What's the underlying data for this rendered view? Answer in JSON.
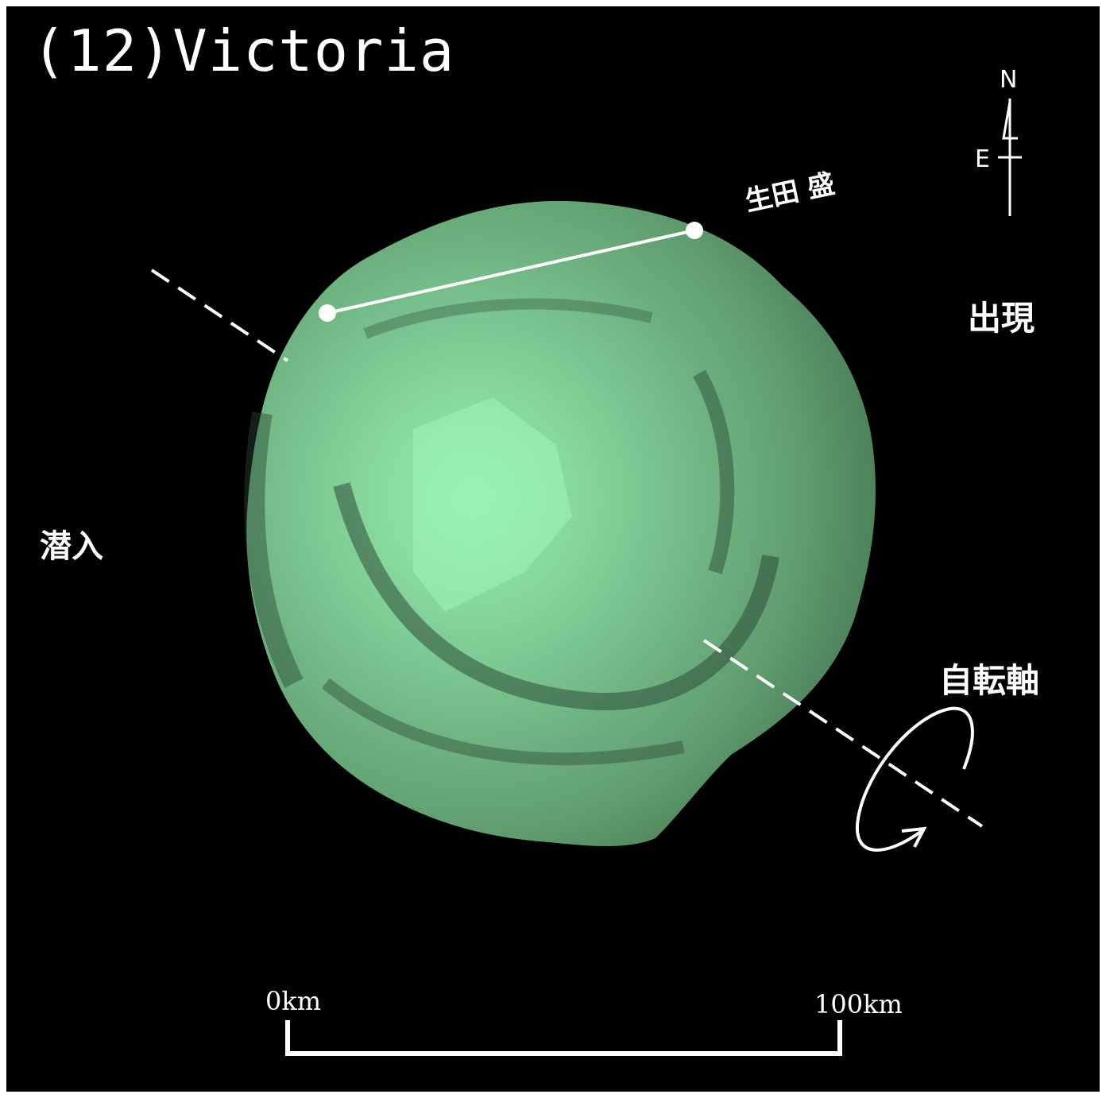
{
  "title": "(12)Victoria",
  "observer_label": "生田 盛",
  "reappearance_label": "出現",
  "disappearance_label": "潜入",
  "spin_axis_label": "自転軸",
  "compass": {
    "north": "N",
    "east": "E"
  },
  "scale_bar": {
    "start_label": "0km",
    "end_label": "100km"
  },
  "colors": {
    "background": "#000000",
    "asteroid_light": "#98f0b0",
    "asteroid_mid": "#6cb07e",
    "asteroid_dark": "#35563e",
    "annotation": "#ffffff"
  }
}
